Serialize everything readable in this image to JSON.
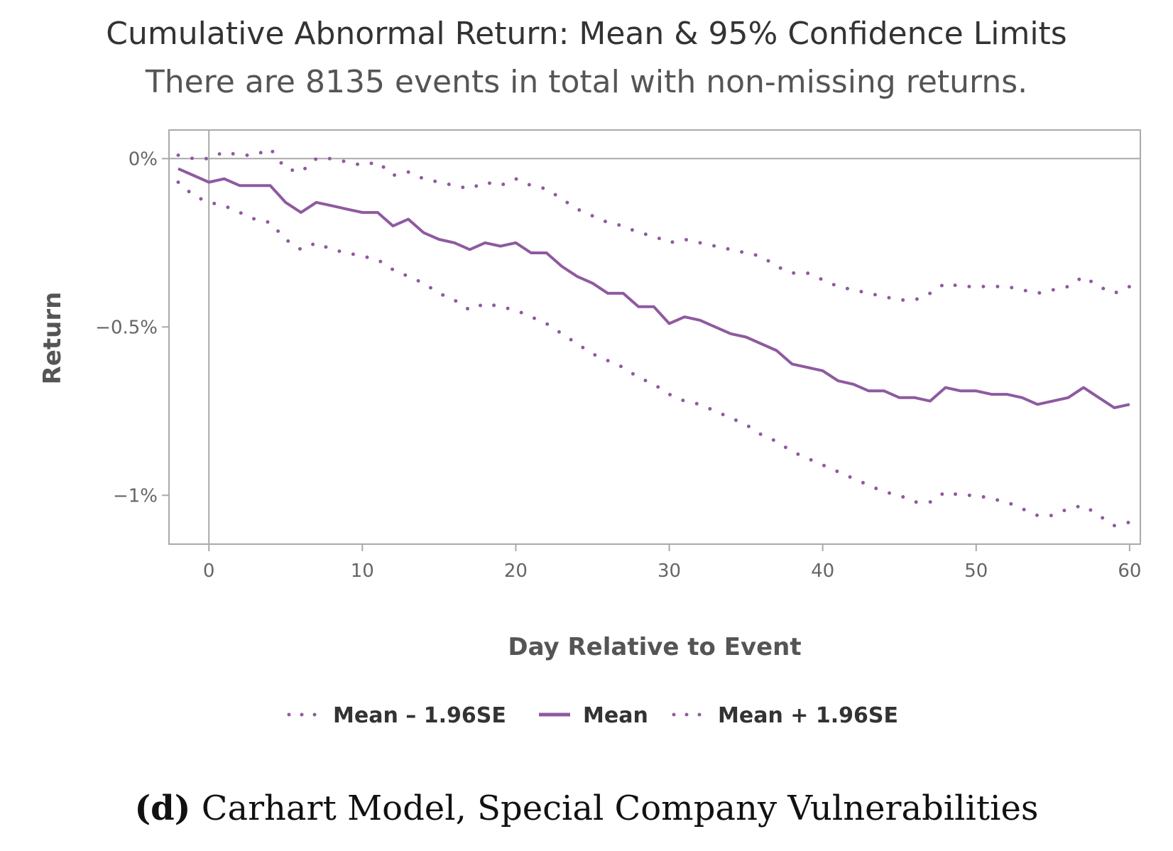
{
  "chart_data": {
    "type": "line",
    "title": "Cumulative Abnormal Return: Mean & 95% Confidence Limits",
    "subtitle": "There are 8135 events in total with non-missing returns.",
    "xlabel": "Day Relative to Event",
    "ylabel": "Return",
    "xlim": [
      -2.6,
      60.7
    ],
    "ylim": [
      -1.145,
      0.085
    ],
    "xticks": [
      0,
      10,
      20,
      30,
      40,
      50,
      60
    ],
    "yticks": [
      0,
      -0.5,
      -1
    ],
    "ytick_labels": [
      "0%",
      "−0.5%",
      "−1%"
    ],
    "reference_lines": {
      "x": 0,
      "y": 0
    },
    "grid": false,
    "legend_position": "bottom",
    "color": "#8e5aa0",
    "x": [
      -2,
      -1,
      0,
      1,
      2,
      3,
      4,
      5,
      6,
      7,
      8,
      9,
      10,
      11,
      12,
      13,
      14,
      15,
      16,
      17,
      18,
      19,
      20,
      21,
      22,
      23,
      24,
      25,
      26,
      27,
      28,
      29,
      30,
      31,
      32,
      33,
      34,
      35,
      36,
      37,
      38,
      39,
      40,
      41,
      42,
      43,
      44,
      45,
      46,
      47,
      48,
      49,
      50,
      51,
      52,
      53,
      54,
      55,
      56,
      57,
      58,
      59,
      60
    ],
    "series": [
      {
        "name": "Mean – 1.96SE",
        "style": "dotted",
        "values": [
          -0.07,
          -0.11,
          -0.13,
          -0.14,
          -0.16,
          -0.18,
          -0.19,
          -0.24,
          -0.27,
          -0.25,
          -0.27,
          -0.28,
          -0.29,
          -0.3,
          -0.33,
          -0.35,
          -0.37,
          -0.4,
          -0.42,
          -0.45,
          -0.43,
          -0.44,
          -0.45,
          -0.47,
          -0.49,
          -0.52,
          -0.55,
          -0.58,
          -0.6,
          -0.62,
          -0.65,
          -0.67,
          -0.7,
          -0.72,
          -0.73,
          -0.75,
          -0.77,
          -0.79,
          -0.82,
          -0.84,
          -0.87,
          -0.89,
          -0.91,
          -0.93,
          -0.95,
          -0.97,
          -0.99,
          -1.0,
          -1.02,
          -1.02,
          -0.99,
          -1.0,
          -1.0,
          -1.01,
          -1.02,
          -1.04,
          -1.06,
          -1.06,
          -1.04,
          -1.03,
          -1.06,
          -1.09,
          -1.08
        ]
      },
      {
        "name": "Mean",
        "style": "solid",
        "values": [
          -0.03,
          -0.05,
          -0.07,
          -0.06,
          -0.08,
          -0.08,
          -0.08,
          -0.13,
          -0.16,
          -0.13,
          -0.14,
          -0.15,
          -0.16,
          -0.16,
          -0.2,
          -0.18,
          -0.22,
          -0.24,
          -0.25,
          -0.27,
          -0.25,
          -0.26,
          -0.25,
          -0.28,
          -0.28,
          -0.32,
          -0.35,
          -0.37,
          -0.4,
          -0.4,
          -0.44,
          -0.44,
          -0.49,
          -0.47,
          -0.48,
          -0.5,
          -0.52,
          -0.53,
          -0.55,
          -0.57,
          -0.61,
          -0.62,
          -0.63,
          -0.66,
          -0.67,
          -0.69,
          -0.69,
          -0.71,
          -0.71,
          -0.72,
          -0.68,
          -0.69,
          -0.69,
          -0.7,
          -0.7,
          -0.71,
          -0.73,
          -0.72,
          -0.71,
          -0.68,
          -0.71,
          -0.74,
          -0.73
        ]
      },
      {
        "name": "Mean + 1.96SE",
        "style": "dotted",
        "values": [
          0.01,
          0.0,
          0.0,
          0.02,
          0.01,
          0.01,
          0.03,
          -0.03,
          -0.04,
          0.0,
          0.0,
          -0.01,
          -0.02,
          -0.01,
          -0.05,
          -0.04,
          -0.06,
          -0.07,
          -0.08,
          -0.09,
          -0.07,
          -0.08,
          -0.06,
          -0.08,
          -0.09,
          -0.12,
          -0.15,
          -0.17,
          -0.19,
          -0.2,
          -0.22,
          -0.23,
          -0.25,
          -0.24,
          -0.25,
          -0.26,
          -0.27,
          -0.28,
          -0.29,
          -0.32,
          -0.34,
          -0.34,
          -0.36,
          -0.38,
          -0.39,
          -0.4,
          -0.41,
          -0.42,
          -0.42,
          -0.4,
          -0.37,
          -0.38,
          -0.38,
          -0.38,
          -0.38,
          -0.39,
          -0.4,
          -0.39,
          -0.38,
          -0.35,
          -0.38,
          -0.4,
          -0.38
        ]
      }
    ]
  },
  "caption": {
    "label": "(d)",
    "text": "Carhart Model, Special Company Vulnerabilities"
  }
}
